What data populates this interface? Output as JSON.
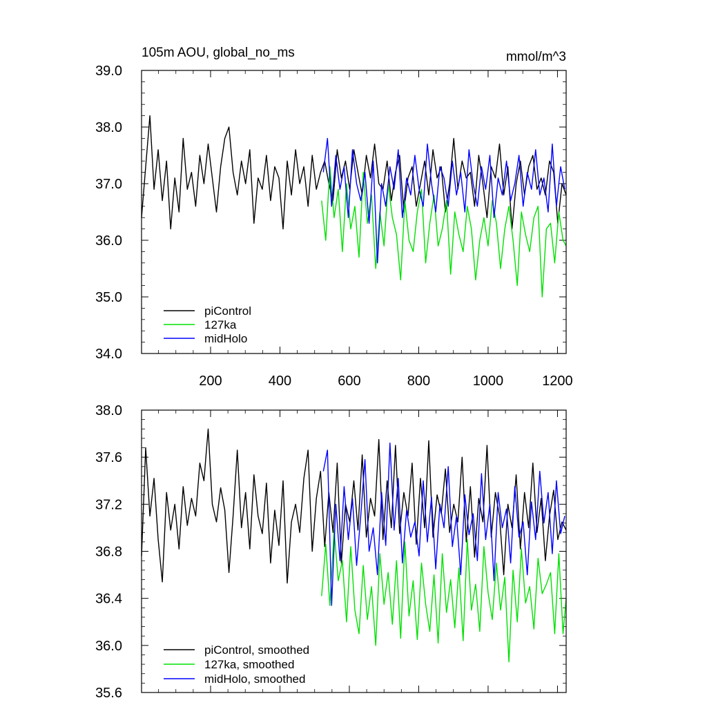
{
  "colors": {
    "piControl": "#000000",
    "127ka": "#00e000",
    "midHolo": "#0000ff"
  },
  "chart_data": [
    {
      "type": "line",
      "title": "105m AOU, global_no_ms",
      "units": "mmol/m^3",
      "xlim": [
        1,
        1225
      ],
      "ylim": [
        34.0,
        39.0
      ],
      "yticks": [
        34.0,
        35.0,
        36.0,
        37.0,
        38.0,
        39.0
      ],
      "ytick_labels": [
        "34.0",
        "35.0",
        "36.0",
        "37.0",
        "38.0",
        "39.0"
      ],
      "xticks": [
        200,
        400,
        600,
        800,
        1000,
        1200
      ],
      "xtick_labels": [
        "200",
        "400",
        "600",
        "800",
        "1000",
        "1200"
      ],
      "grid": false,
      "legend": "bottom-left",
      "legend_labels": [
        "piControl",
        "127ka",
        "midHolo"
      ],
      "series": [
        {
          "name": "piControl",
          "color_key": "piControl",
          "x_range": [
            1,
            1225
          ],
          "step": 12,
          "values": [
            36.4,
            37.3,
            38.2,
            36.9,
            37.6,
            36.7,
            37.4,
            36.2,
            37.1,
            36.5,
            37.8,
            36.9,
            37.2,
            36.6,
            37.5,
            37.0,
            37.7,
            37.1,
            36.5,
            37.3,
            37.8,
            38.0,
            37.2,
            36.8,
            37.4,
            37.0,
            37.6,
            36.3,
            37.1,
            36.9,
            37.5,
            36.7,
            37.3,
            37.1,
            36.2,
            37.4,
            36.8,
            37.6,
            37.0,
            37.3,
            36.6,
            37.5,
            36.9,
            37.2,
            37.4,
            37.0,
            36.7,
            37.6,
            37.1,
            37.4,
            36.9,
            37.6,
            37.2,
            36.8,
            37.5,
            37.1,
            37.7,
            37.0,
            36.9,
            37.4,
            36.7,
            37.2,
            37.5,
            36.5,
            37.1,
            37.3,
            36.6,
            37.0,
            37.4,
            36.8,
            37.6,
            37.1,
            37.3,
            36.5,
            37.0,
            37.8,
            36.9,
            37.4,
            37.1,
            37.2,
            36.6,
            37.5,
            37.0,
            36.4,
            37.3,
            37.1,
            37.7,
            36.8,
            37.3,
            36.2,
            37.0,
            37.4,
            36.8,
            37.3,
            37.5,
            36.9,
            37.1,
            36.8,
            37.4,
            37.2,
            36.3,
            37.0,
            36.8
          ]
        },
        {
          "name": "127ka",
          "color_key": "127ka",
          "x_range": [
            520,
            1225
          ],
          "step": 12,
          "values": [
            36.7,
            36.0,
            37.3,
            36.4,
            36.9,
            35.8,
            37.0,
            36.2,
            36.6,
            35.7,
            37.2,
            36.3,
            36.8,
            35.5,
            36.5,
            35.9,
            37.0,
            36.4,
            36.1,
            35.3,
            36.7,
            36.0,
            35.8,
            36.5,
            36.9,
            35.6,
            36.3,
            36.8,
            35.9,
            36.2,
            36.7,
            35.4,
            36.5,
            36.1,
            35.8,
            36.6,
            36.2,
            35.3,
            36.0,
            36.4,
            35.9,
            36.7,
            36.3,
            35.5,
            36.2,
            36.6,
            36.0,
            35.2,
            36.5,
            36.1,
            35.8,
            36.4,
            36.6,
            35.0,
            36.2,
            36.3,
            35.6,
            36.5,
            36.0,
            35.9
          ]
        },
        {
          "name": "midHolo",
          "color_key": "midHolo",
          "x_range": [
            525,
            1225
          ],
          "step": 12,
          "values": [
            37.2,
            37.8,
            36.6,
            37.5,
            36.9,
            37.3,
            36.4,
            37.6,
            37.0,
            36.7,
            37.2,
            36.3,
            37.4,
            35.6,
            37.0,
            36.6,
            37.3,
            36.9,
            37.6,
            36.4,
            37.1,
            36.8,
            37.5,
            36.9,
            36.6,
            37.7,
            37.0,
            36.5,
            37.3,
            37.1,
            36.6,
            37.4,
            36.8,
            37.2,
            36.5,
            37.6,
            37.0,
            36.6,
            37.3,
            36.9,
            37.5,
            36.4,
            37.1,
            36.8,
            37.4,
            36.7,
            37.0,
            37.5,
            36.6,
            37.2,
            36.9,
            37.6,
            36.8,
            37.1,
            36.5,
            37.7,
            36.6,
            37.3,
            36.9
          ]
        }
      ]
    },
    {
      "type": "line",
      "xlim": [
        1,
        1225
      ],
      "ylim": [
        35.6,
        38.0
      ],
      "yticks": [
        35.6,
        36.0,
        36.4,
        36.8,
        37.2,
        37.6,
        38.0
      ],
      "ytick_labels": [
        "35.6",
        "36.0",
        "36.4",
        "36.8",
        "37.2",
        "37.6",
        "38.0"
      ],
      "xticks": [
        200,
        400,
        600,
        800,
        1000,
        1200
      ],
      "grid": false,
      "legend": "bottom-left",
      "legend_labels": [
        "piControl, smoothed",
        "127ka, smoothed",
        "midHolo, smoothed"
      ],
      "series": [
        {
          "name": "piControl, smoothed",
          "color_key": "piControl",
          "x_range": [
            1,
            1225
          ],
          "step": 12,
          "values": [
            36.76,
            37.68,
            37.1,
            37.42,
            36.9,
            36.54,
            37.3,
            36.98,
            37.2,
            36.82,
            37.35,
            37.02,
            37.25,
            37.1,
            37.55,
            37.4,
            37.84,
            37.2,
            37.05,
            37.34,
            37.15,
            36.62,
            37.1,
            37.66,
            37.0,
            37.3,
            36.82,
            37.45,
            37.1,
            36.95,
            37.38,
            36.7,
            37.15,
            36.85,
            37.4,
            36.53,
            37.05,
            37.2,
            36.96,
            37.42,
            37.66,
            36.8,
            37.25,
            37.48,
            36.84,
            37.3,
            36.96,
            37.55,
            36.7,
            37.2,
            37.05,
            37.4,
            36.98,
            37.62,
            36.92,
            37.25,
            37.1,
            37.75,
            36.9,
            37.4,
            37.0,
            37.7,
            36.95,
            37.3,
            37.1,
            37.55,
            36.86,
            37.42,
            37.0,
            37.74,
            36.92,
            37.28,
            37.12,
            37.5,
            36.96,
            37.2,
            37.05,
            37.6,
            36.88,
            37.35,
            36.75,
            37.25,
            37.05,
            37.7,
            36.92,
            37.3,
            37.1,
            36.6,
            37.2,
            37.0,
            37.45,
            36.82,
            37.3,
            37.0,
            37.55,
            36.96,
            37.25,
            36.72,
            37.1,
            37.32,
            36.9,
            37.05,
            36.98
          ]
        },
        {
          "name": "127ka, smoothed",
          "color_key": "127ka",
          "x_range": [
            520,
            1225
          ],
          "step": 12,
          "values": [
            36.42,
            36.86,
            36.34,
            36.98,
            36.55,
            36.72,
            36.2,
            36.84,
            36.3,
            36.1,
            36.68,
            36.22,
            36.5,
            36.0,
            36.78,
            36.35,
            36.62,
            36.18,
            36.72,
            36.06,
            36.88,
            36.25,
            36.55,
            36.05,
            36.7,
            36.35,
            36.12,
            36.6,
            36.02,
            36.78,
            36.28,
            36.56,
            36.15,
            36.66,
            36.04,
            36.9,
            36.3,
            36.52,
            36.12,
            36.84,
            36.45,
            36.22,
            36.7,
            36.3,
            36.58,
            35.86,
            36.64,
            36.2,
            36.82,
            36.36,
            36.5,
            36.14,
            36.74,
            36.44,
            36.52,
            36.62,
            36.1,
            36.78,
            36.1,
            36.4
          ]
        },
        {
          "name": "midHolo, smoothed",
          "color_key": "midHolo",
          "x_range": [
            525,
            1225
          ],
          "step": 12,
          "values": [
            37.48,
            37.66,
            36.34,
            37.2,
            36.72,
            37.35,
            36.9,
            37.25,
            36.68,
            37.1,
            37.58,
            36.8,
            37.0,
            36.6,
            37.3,
            36.85,
            37.72,
            36.98,
            37.42,
            36.7,
            37.15,
            36.92,
            37.05,
            36.76,
            37.4,
            36.88,
            37.26,
            36.65,
            37.2,
            37.0,
            37.52,
            36.84,
            37.1,
            36.6,
            37.28,
            36.94,
            37.12,
            36.72,
            37.46,
            36.9,
            37.2,
            36.55,
            37.3,
            37.0,
            37.16,
            36.7,
            37.35,
            36.92,
            37.05,
            36.6,
            37.22,
            36.9,
            37.48,
            37.04,
            37.3,
            36.78,
            37.4,
            36.95,
            37.1
          ]
        }
      ]
    }
  ]
}
